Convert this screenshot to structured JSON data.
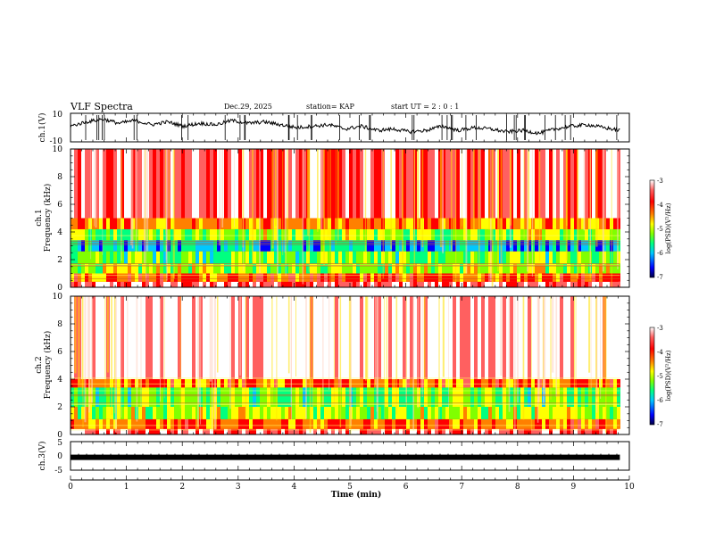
{
  "header": {
    "title": "VLF Spectra",
    "date": "Dec.29, 2025",
    "station": "station= KAP",
    "start": "start  UT =  2 : 0  : 1"
  },
  "chart_data": [
    {
      "type": "line",
      "name": "ch1-waveform",
      "ylabel": "ch.1(V)",
      "ylim": [
        -10,
        10
      ],
      "yticks": [
        "10",
        "-10"
      ],
      "x_range_min": [
        0,
        9.83
      ],
      "trend": [
        1,
        4,
        6,
        3,
        5,
        2,
        4,
        1,
        3,
        2,
        5,
        3,
        4,
        2,
        0,
        1,
        2,
        -1,
        1,
        -2,
        -1,
        -3,
        -2,
        1,
        -2,
        0,
        -1,
        -3,
        -2,
        -4,
        -1,
        1,
        2,
        0,
        -2
      ]
    },
    {
      "type": "heatmap",
      "name": "ch1-spectrogram",
      "ylabel_top": "ch.1",
      "ylabel": "Frequency  (kHz)",
      "ylim_khz": [
        0,
        10
      ],
      "yticks": [
        "0",
        "2",
        "4",
        "6",
        "8",
        "10"
      ],
      "x_range_min": [
        0,
        9.83
      ],
      "band_log_psd": [
        {
          "khz": [
            0,
            0.4
          ],
          "level": -3.6
        },
        {
          "khz": [
            0.4,
            1.0
          ],
          "level": -4.2
        },
        {
          "khz": [
            1.0,
            1.7
          ],
          "level": -5.0
        },
        {
          "khz": [
            1.7,
            2.6
          ],
          "level": -5.3
        },
        {
          "khz": [
            2.6,
            3.4
          ],
          "level": -5.9
        },
        {
          "khz": [
            3.4,
            4.2
          ],
          "level": -5.1
        },
        {
          "khz": [
            4.2,
            5.0
          ],
          "level": -4.4
        },
        {
          "khz": [
            5.0,
            10.0
          ],
          "level": -3.6
        }
      ]
    },
    {
      "type": "heatmap",
      "name": "ch2-spectrogram",
      "ylabel_top": "ch.2",
      "ylabel": "Frequency  (kHz)",
      "ylim_khz": [
        0,
        10
      ],
      "yticks": [
        "0",
        "2",
        "4",
        "6",
        "8",
        "10"
      ],
      "x_range_min": [
        0,
        9.83
      ],
      "band_log_psd": [
        {
          "khz": [
            0,
            0.4
          ],
          "level": -3.6
        },
        {
          "khz": [
            0.4,
            1.1
          ],
          "level": -4.3
        },
        {
          "khz": [
            1.1,
            2.0
          ],
          "level": -5.0
        },
        {
          "khz": [
            2.0,
            3.4
          ],
          "level": -5.3
        },
        {
          "khz": [
            3.4,
            4.0
          ],
          "level": -4.3
        },
        {
          "khz": [
            4.0,
            10.0
          ],
          "level": -3.2
        }
      ]
    },
    {
      "type": "line",
      "name": "ch3-waveform",
      "ylabel": "ch.3(V)",
      "ylim": [
        -5,
        5
      ],
      "yticks": [
        "5",
        "0",
        "-5"
      ],
      "x_range_min": [
        0,
        9.83
      ],
      "center_v": -0.5
    }
  ],
  "colorbar": {
    "label": "log(PSD)(V²/Hz)",
    "ticks": [
      "-3",
      "-4",
      "-5",
      "-6",
      "-7"
    ],
    "range": [
      -7,
      -3
    ],
    "colors": [
      "#000040",
      "#0000ff",
      "#00c8ff",
      "#00ff80",
      "#80ff00",
      "#ffff00",
      "#ff8000",
      "#ff0000",
      "#ff6060",
      "#ffffff"
    ]
  },
  "xaxis": {
    "label": "Time  (min)",
    "ticks": [
      "0",
      "1",
      "2",
      "3",
      "4",
      "5",
      "6",
      "7",
      "8",
      "9",
      "10"
    ],
    "range": [
      0,
      10
    ]
  }
}
